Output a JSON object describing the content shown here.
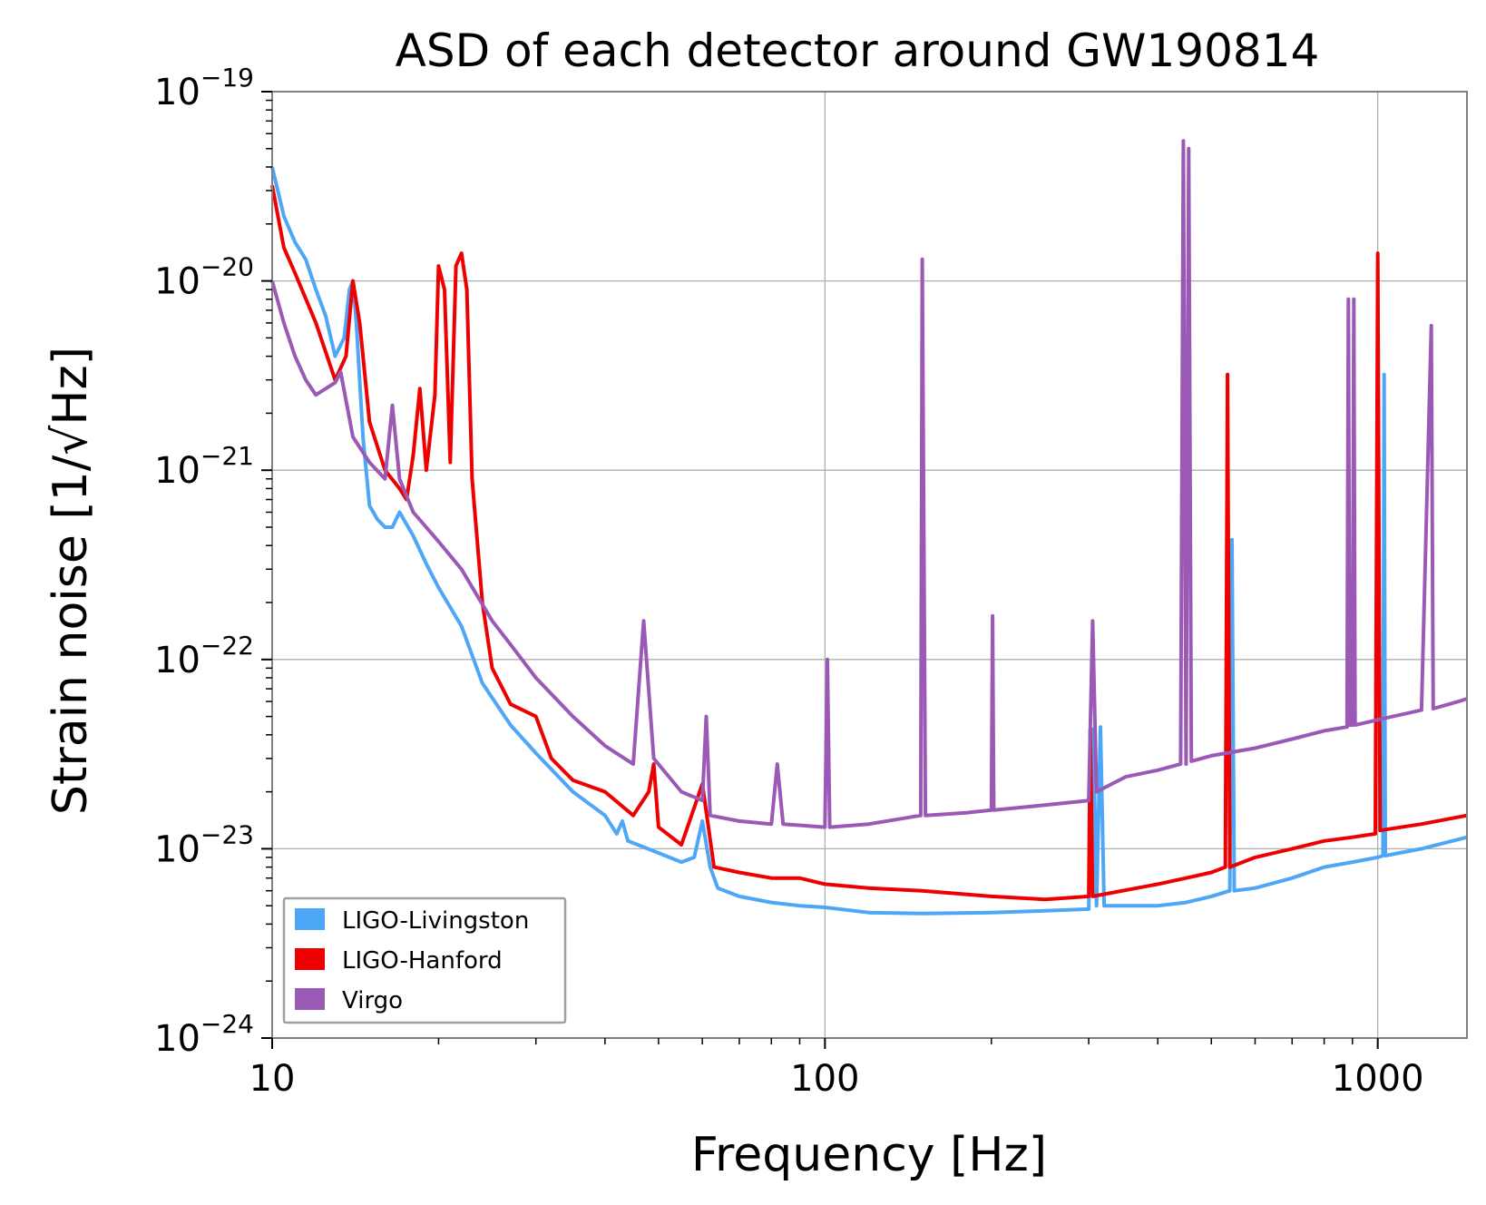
{
  "chart_data": {
    "type": "line",
    "title": "ASD of each detector around GW190814",
    "xlabel": "Frequency [Hz]",
    "ylabel": "Strain noise [1/√Hz]",
    "x_scale": "log",
    "y_scale": "log",
    "xlim": [
      10,
      1450
    ],
    "ylim": [
      1e-24,
      1e-19
    ],
    "x_ticks": [
      10,
      100,
      1000
    ],
    "x_tick_labels": [
      "10",
      "100",
      "1000"
    ],
    "y_ticks": [
      1e-24,
      1e-23,
      1e-22,
      1e-21,
      1e-20,
      1e-19
    ],
    "y_tick_labels": [
      {
        "base": "10",
        "exp": "−24"
      },
      {
        "base": "10",
        "exp": "−23"
      },
      {
        "base": "10",
        "exp": "−22"
      },
      {
        "base": "10",
        "exp": "−21"
      },
      {
        "base": "10",
        "exp": "−20"
      },
      {
        "base": "10",
        "exp": "−19"
      }
    ],
    "grid": true,
    "legend_position": "bottom-left",
    "series": [
      {
        "name": "LIGO-Livingston",
        "color": "#4ea6f7",
        "points": [
          [
            10,
            4e-20
          ],
          [
            10.5,
            2.2e-20
          ],
          [
            11,
            1.6e-20
          ],
          [
            11.5,
            1.3e-20
          ],
          [
            12,
            9e-21
          ],
          [
            12.5,
            6.5e-21
          ],
          [
            13,
            4e-21
          ],
          [
            13.5,
            5e-21
          ],
          [
            13.8,
            9e-21
          ],
          [
            14,
            1e-20
          ],
          [
            14.2,
            6e-21
          ],
          [
            14.6,
            1.5e-21
          ],
          [
            15,
            6.5e-22
          ],
          [
            15.5,
            5.5e-22
          ],
          [
            16,
            5e-22
          ],
          [
            16.5,
            5e-22
          ],
          [
            17,
            6e-22
          ],
          [
            18,
            4.5e-22
          ],
          [
            19,
            3.2e-22
          ],
          [
            20,
            2.4e-22
          ],
          [
            22,
            1.5e-22
          ],
          [
            24,
            7.5e-23
          ],
          [
            27,
            4.5e-23
          ],
          [
            30,
            3.2e-23
          ],
          [
            35,
            2e-23
          ],
          [
            40,
            1.5e-23
          ],
          [
            42,
            1.2e-23
          ],
          [
            43,
            1.4e-23
          ],
          [
            44,
            1.1e-23
          ],
          [
            50,
            9.5e-24
          ],
          [
            55,
            8.5e-24
          ],
          [
            58,
            9e-24
          ],
          [
            60,
            1.4e-23
          ],
          [
            62,
            8e-24
          ],
          [
            64,
            6.2e-24
          ],
          [
            70,
            5.6e-24
          ],
          [
            80,
            5.2e-24
          ],
          [
            90,
            5e-24
          ],
          [
            100,
            4.9e-24
          ],
          [
            120,
            4.6e-24
          ],
          [
            150,
            4.55e-24
          ],
          [
            200,
            4.6e-24
          ],
          [
            250,
            4.7e-24
          ],
          [
            300,
            4.8e-24
          ],
          [
            306,
            4.3e-23
          ],
          [
            310,
            5e-24
          ],
          [
            315,
            4.4e-23
          ],
          [
            320,
            5e-24
          ],
          [
            400,
            5e-24
          ],
          [
            450,
            5.2e-24
          ],
          [
            500,
            5.6e-24
          ],
          [
            540,
            6e-24
          ],
          [
            545,
            4.3e-22
          ],
          [
            550,
            6e-24
          ],
          [
            600,
            6.2e-24
          ],
          [
            700,
            7e-24
          ],
          [
            800,
            8e-24
          ],
          [
            900,
            8.5e-24
          ],
          [
            1000,
            9e-24
          ],
          [
            1022,
            9.2e-24
          ],
          [
            1027,
            3.2e-21
          ],
          [
            1032,
            9.2e-24
          ],
          [
            1200,
            1e-23
          ],
          [
            1450,
            1.15e-23
          ]
        ]
      },
      {
        "name": "LIGO-Hanford",
        "color": "#ee0000",
        "points": [
          [
            10,
            3.2e-20
          ],
          [
            10.5,
            1.5e-20
          ],
          [
            11,
            1.1e-20
          ],
          [
            12,
            6e-21
          ],
          [
            13,
            3e-21
          ],
          [
            13.6,
            4e-21
          ],
          [
            14,
            1e-20
          ],
          [
            14.4,
            6e-21
          ],
          [
            15,
            1.8e-21
          ],
          [
            16,
            1e-21
          ],
          [
            17,
            8e-22
          ],
          [
            17.5,
            7e-22
          ],
          [
            18,
            1.2e-21
          ],
          [
            18.5,
            2.7e-21
          ],
          [
            19,
            1e-21
          ],
          [
            19.7,
            2.5e-21
          ],
          [
            20,
            1.2e-20
          ],
          [
            20.5,
            9e-21
          ],
          [
            21,
            1.1e-21
          ],
          [
            21.5,
            1.2e-20
          ],
          [
            22,
            1.4e-20
          ],
          [
            22.5,
            9e-21
          ],
          [
            23,
            9e-22
          ],
          [
            24,
            2e-22
          ],
          [
            25,
            9e-23
          ],
          [
            27,
            5.8e-23
          ],
          [
            30,
            5e-23
          ],
          [
            32,
            3e-23
          ],
          [
            35,
            2.3e-23
          ],
          [
            40,
            2e-23
          ],
          [
            45,
            1.5e-23
          ],
          [
            48,
            2e-23
          ],
          [
            49,
            2.8e-23
          ],
          [
            50,
            1.3e-23
          ],
          [
            55,
            1.05e-23
          ],
          [
            60,
            2.2e-23
          ],
          [
            63,
            8e-24
          ],
          [
            70,
            7.5e-24
          ],
          [
            80,
            7e-24
          ],
          [
            90,
            7e-24
          ],
          [
            100,
            6.5e-24
          ],
          [
            120,
            6.2e-24
          ],
          [
            150,
            6e-24
          ],
          [
            200,
            5.6e-24
          ],
          [
            250,
            5.4e-24
          ],
          [
            300,
            5.6e-24
          ],
          [
            302,
            4.3e-23
          ],
          [
            305,
            5.6e-24
          ],
          [
            400,
            6.5e-24
          ],
          [
            450,
            7e-24
          ],
          [
            500,
            7.5e-24
          ],
          [
            530,
            8e-24
          ],
          [
            535,
            3.2e-21
          ],
          [
            540,
            8e-24
          ],
          [
            600,
            9e-24
          ],
          [
            700,
            1e-23
          ],
          [
            800,
            1.1e-23
          ],
          [
            900,
            1.15e-23
          ],
          [
            990,
            1.2e-23
          ],
          [
            1000,
            1.4e-20
          ],
          [
            1010,
            1.25e-23
          ],
          [
            1200,
            1.35e-23
          ],
          [
            1450,
            1.5e-23
          ]
        ]
      },
      {
        "name": "Virgo",
        "color": "#9b59b6",
        "points": [
          [
            10,
            1e-20
          ],
          [
            10.5,
            6e-21
          ],
          [
            11,
            4e-21
          ],
          [
            11.5,
            3e-21
          ],
          [
            12,
            2.5e-21
          ],
          [
            13,
            2.9e-21
          ],
          [
            13.3,
            3.3e-21
          ],
          [
            14,
            1.5e-21
          ],
          [
            15,
            1.1e-21
          ],
          [
            16,
            9e-22
          ],
          [
            16.5,
            2.2e-21
          ],
          [
            17,
            9e-22
          ],
          [
            18,
            6e-22
          ],
          [
            20,
            4.2e-22
          ],
          [
            22,
            3e-22
          ],
          [
            25,
            1.6e-22
          ],
          [
            27,
            1.2e-22
          ],
          [
            30,
            8e-23
          ],
          [
            35,
            5e-23
          ],
          [
            40,
            3.5e-23
          ],
          [
            45,
            2.8e-23
          ],
          [
            47,
            1.6e-22
          ],
          [
            49,
            3e-23
          ],
          [
            55,
            2e-23
          ],
          [
            60,
            1.8e-23
          ],
          [
            61,
            5e-23
          ],
          [
            62,
            1.5e-23
          ],
          [
            70,
            1.4e-23
          ],
          [
            80,
            1.35e-23
          ],
          [
            82,
            2.8e-23
          ],
          [
            84,
            1.35e-23
          ],
          [
            100,
            1.3e-23
          ],
          [
            101,
            1e-22
          ],
          [
            102,
            1.3e-23
          ],
          [
            120,
            1.35e-23
          ],
          [
            149,
            1.5e-23
          ],
          [
            150,
            1.3e-20
          ],
          [
            152,
            1.5e-23
          ],
          [
            180,
            1.55e-23
          ],
          [
            200,
            1.6e-23
          ],
          [
            201,
            1.7e-22
          ],
          [
            202,
            1.6e-23
          ],
          [
            250,
            1.7e-23
          ],
          [
            300,
            1.8e-23
          ],
          [
            305,
            1.6e-22
          ],
          [
            310,
            2e-23
          ],
          [
            350,
            2.4e-23
          ],
          [
            400,
            2.6e-23
          ],
          [
            440,
            2.8e-23
          ],
          [
            445,
            5.5e-20
          ],
          [
            450,
            2.8e-23
          ],
          [
            455,
            5e-20
          ],
          [
            460,
            2.9e-23
          ],
          [
            500,
            3.1e-23
          ],
          [
            600,
            3.4e-23
          ],
          [
            700,
            3.8e-23
          ],
          [
            800,
            4.2e-23
          ],
          [
            880,
            4.4e-23
          ],
          [
            885,
            8e-21
          ],
          [
            890,
            4.5e-23
          ],
          [
            900,
            4.5e-23
          ],
          [
            905,
            8e-21
          ],
          [
            910,
            4.5e-23
          ],
          [
            1000,
            4.8e-23
          ],
          [
            1200,
            5.4e-23
          ],
          [
            1250,
            5.8e-21
          ],
          [
            1260,
            5.5e-23
          ],
          [
            1400,
            6e-23
          ],
          [
            1450,
            6.2e-23
          ]
        ]
      }
    ]
  }
}
